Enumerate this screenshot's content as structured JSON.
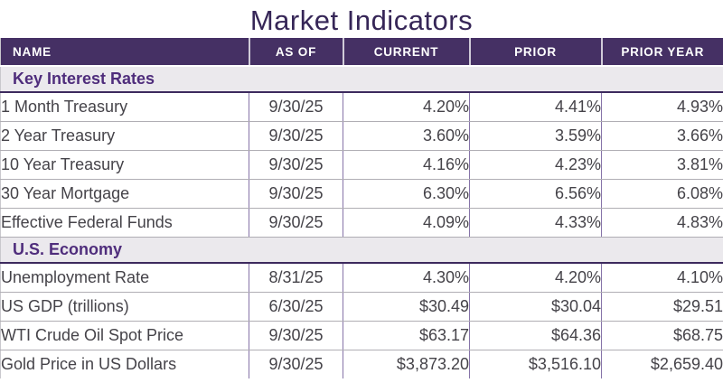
{
  "title": "Market Indicators",
  "colors": {
    "title_text": "#362657",
    "header_bg": "#453064",
    "header_text": "#ffffff",
    "section_bg": "#ebe9ed",
    "section_text": "#4f2d7c",
    "section_border": "#3d2a5e",
    "data_text": "#454349",
    "row_divider": "#b0aeb4",
    "column_divider": "#8674a8",
    "outer_border": "#c9c8cd"
  },
  "chart_data": {
    "type": "table",
    "title": "Market Indicators",
    "columns": [
      "NAME",
      "AS OF",
      "CURRENT",
      "PRIOR",
      "PRIOR YEAR"
    ],
    "sections": [
      {
        "label": "Key Interest Rates",
        "rows": [
          [
            "1 Month Treasury",
            "9/30/25",
            "4.20%",
            "4.41%",
            "4.93%"
          ],
          [
            "2 Year Treasury",
            "9/30/25",
            "3.60%",
            "3.59%",
            "3.66%"
          ],
          [
            "10 Year Treasury",
            "9/30/25",
            "4.16%",
            "4.23%",
            "3.81%"
          ],
          [
            "30 Year Mortgage",
            "9/30/25",
            "6.30%",
            "6.56%",
            "6.08%"
          ],
          [
            "Effective Federal Funds",
            "9/30/25",
            "4.09%",
            "4.33%",
            "4.83%"
          ]
        ]
      },
      {
        "label": "U.S. Economy",
        "rows": [
          [
            "Unemployment Rate",
            "8/31/25",
            "4.30%",
            "4.20%",
            "4.10%"
          ],
          [
            "US GDP (trillions)",
            "6/30/25",
            "$30.49",
            "$30.04",
            "$29.51"
          ],
          [
            "WTI Crude Oil Spot Price",
            "9/30/25",
            "$63.17",
            "$64.36",
            "$68.75"
          ],
          [
            "Gold Price in US Dollars",
            "9/30/25",
            "$3,873.20",
            "$3,516.10",
            "$2,659.40"
          ]
        ]
      }
    ]
  }
}
